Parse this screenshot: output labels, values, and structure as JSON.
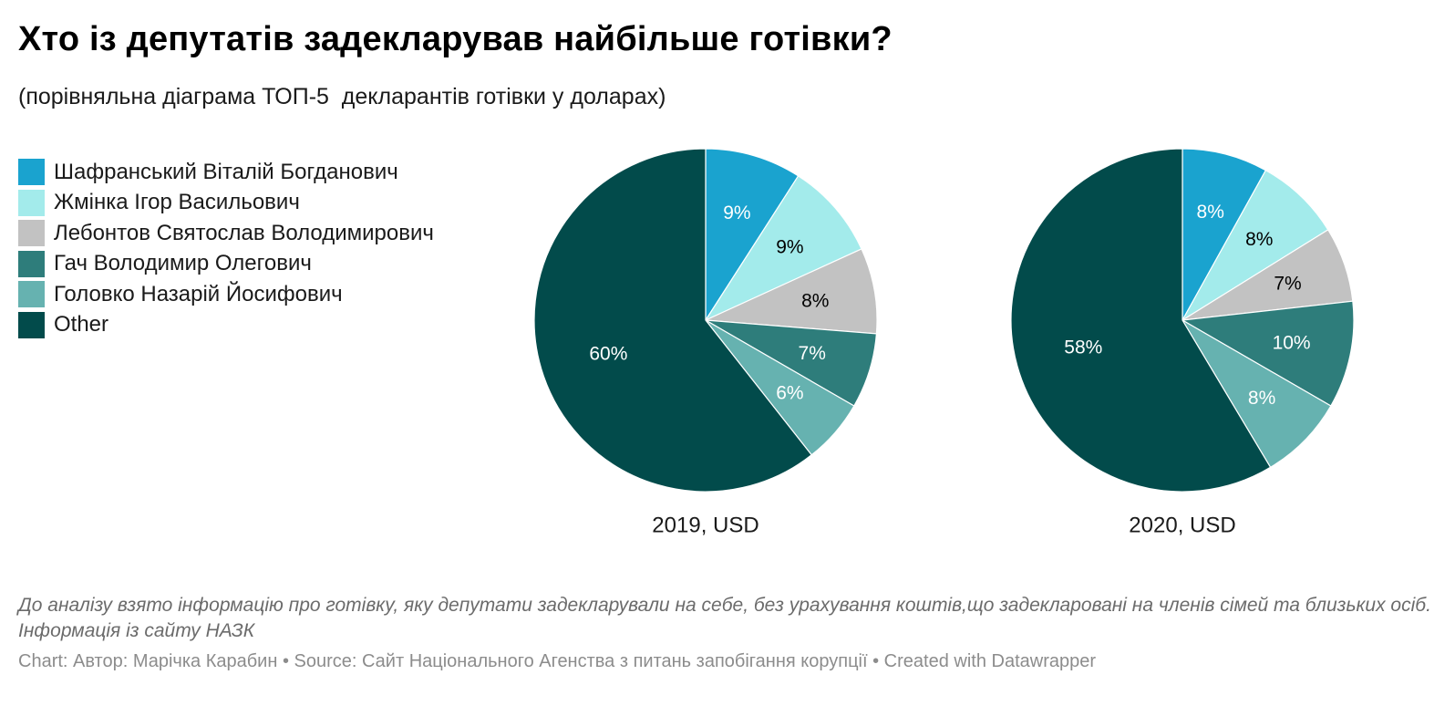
{
  "title": "Хто із депутатів задекларував найбільше готівки?",
  "subtitle": "(порівняльна діаграма ТОП-5  декларантів готівки у доларах)",
  "notes": "До аналізу взято інформацію про готівку, яку депутати задекларували  на себе, без урахування коштів,що задекларовані на членів сімей та близьких осіб. Інформація із сайту НАЗК",
  "footer": {
    "chart_label": "Chart: Автор: Марічка Карабин",
    "source": "Source: Сайт Національного Агенства з питань запобігання корупції",
    "created": "Created with Datawrapper"
  },
  "chart_data": {
    "type": "pie",
    "legend_position": "top-left",
    "categories": [
      "Шафранський Віталій Богданович",
      "Жмінка Ігор Васильович",
      "Лебонтов Святослав Володимирович",
      "Гач Володимир Олегович",
      "Головко Назарій Йосифович",
      "Other"
    ],
    "colors": [
      "#1aa3cf",
      "#a3ebeb",
      "#c2c2c2",
      "#2e7d7b",
      "#66b2b0",
      "#024b4b"
    ],
    "label_colors": [
      "#ffffff",
      "#000000",
      "#000000",
      "#ffffff",
      "#ffffff",
      "#ffffff"
    ],
    "series": [
      {
        "name": "2019, USD",
        "values": [
          9,
          9,
          8,
          7,
          6,
          60
        ],
        "labels": [
          "9%",
          "9%",
          "8%",
          "7%",
          "6%",
          "60%"
        ]
      },
      {
        "name": "2020, USD",
        "values": [
          8,
          8,
          7,
          10,
          8,
          58
        ],
        "labels": [
          "8%",
          "8%",
          "7%",
          "10%",
          "8%",
          "58%"
        ]
      }
    ]
  }
}
